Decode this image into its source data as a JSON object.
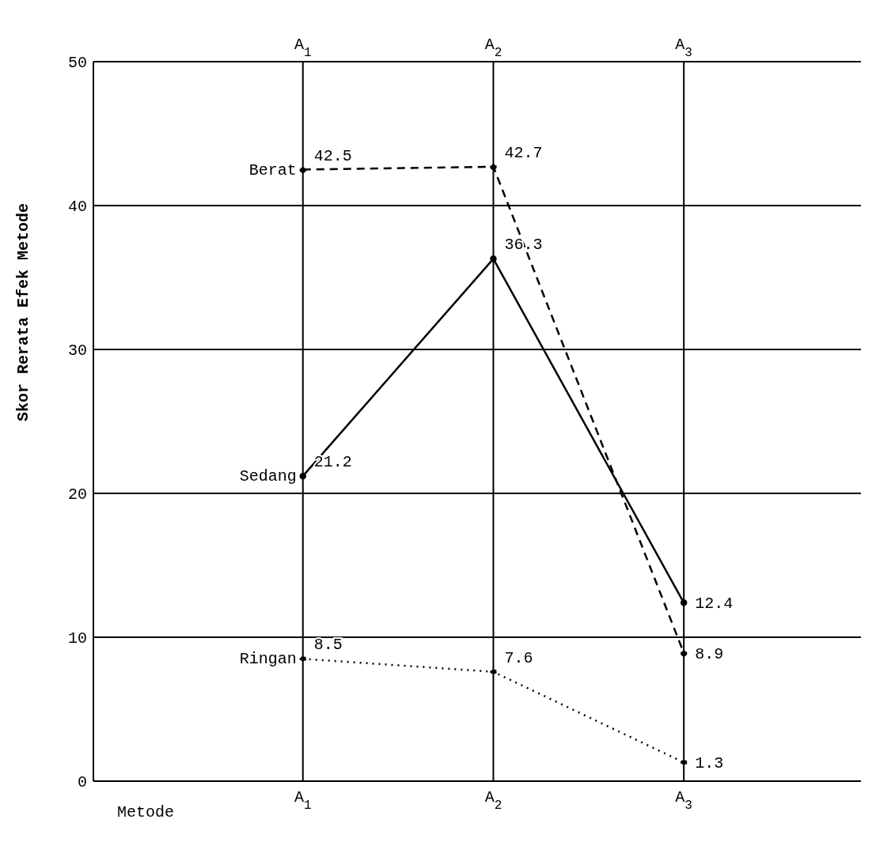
{
  "chart_data": {
    "type": "line",
    "xlabel": "Metode",
    "ylabel": "Skor Rerata Efek Metode",
    "categories": [
      "A$_{1}$",
      "A$_{2}$",
      "A$_{3}$"
    ],
    "series": [
      {
        "name": "Berat",
        "color": "#000000",
        "values": [
          42.5,
          42.7,
          8.9
        ],
        "line_style": "dashed"
      },
      {
        "name": "Sedang",
        "color": "#000000",
        "values": [
          21.2,
          36.3,
          12.4
        ],
        "line_style": "solid"
      },
      {
        "name": "Ringan",
        "color": "#000000",
        "values": [
          8.5,
          7.6,
          1.3
        ],
        "line_style": "dotted"
      }
    ],
    "ylim": [
      0,
      50
    ],
    "yticks": [
      0,
      10,
      20,
      30,
      40,
      50
    ],
    "grid": true,
    "legend": false,
    "data_labels": true,
    "marker": "circle"
  }
}
